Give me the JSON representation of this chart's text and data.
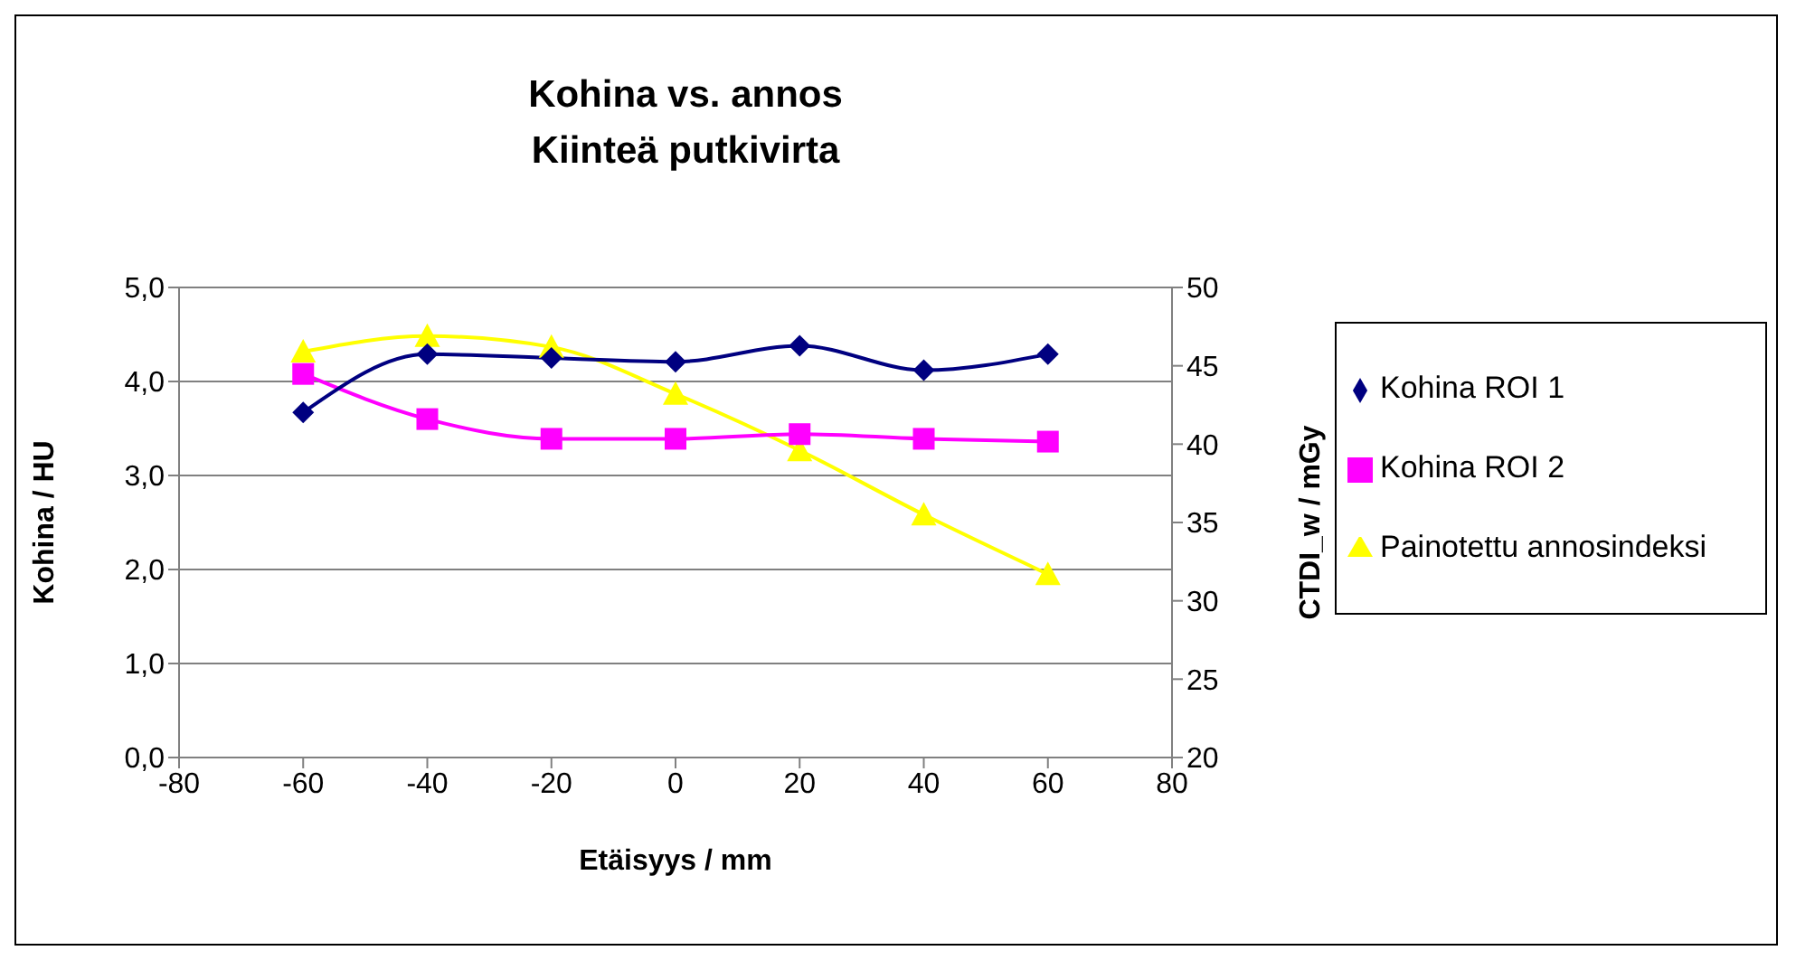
{
  "chart_data": {
    "type": "line",
    "title": "Kohina vs. annos",
    "subtitle": "Kiinteä putkivirta",
    "xlabel": "Etäisyys / mm",
    "ylabel": "Kohina / HU",
    "y2label": "CTDI_w / mGy",
    "x": [
      -60,
      -40,
      -20,
      0,
      20,
      40,
      60
    ],
    "series": [
      {
        "name": "Kohina ROI 1",
        "color": "#000080",
        "marker": "diamond",
        "values": [
          3.67,
          4.29,
          4.25,
          4.21,
          4.38,
          4.12,
          4.29
        ]
      },
      {
        "name": "Kohina ROI 2",
        "color": "#ff00ff",
        "marker": "square",
        "values": [
          4.08,
          3.6,
          3.39,
          3.39,
          3.44,
          3.39,
          3.36
        ]
      },
      {
        "name": "Painotettu annosindeksi",
        "color": "#ffff00",
        "marker": "triangle",
        "axis": "y2",
        "values": [
          45.9,
          46.9,
          46.2,
          43.2,
          39.6,
          35.5,
          31.7
        ]
      }
    ],
    "xlim": [
      -80,
      80
    ],
    "xticks": [
      -80,
      -60,
      -40,
      -20,
      0,
      20,
      40,
      60,
      80
    ],
    "ylim": [
      0,
      5
    ],
    "yticks": [
      {
        "value": 0,
        "label": "0,0"
      },
      {
        "value": 1,
        "label": "1,0"
      },
      {
        "value": 2,
        "label": "2,0"
      },
      {
        "value": 3,
        "label": "3,0"
      },
      {
        "value": 4,
        "label": "4,0"
      },
      {
        "value": 5,
        "label": "5,0"
      }
    ],
    "y2lim": [
      20,
      50
    ],
    "y2ticks": [
      20,
      25,
      30,
      35,
      40,
      45,
      50
    ],
    "grid": "y",
    "legend": "right",
    "line_style": "solid"
  }
}
